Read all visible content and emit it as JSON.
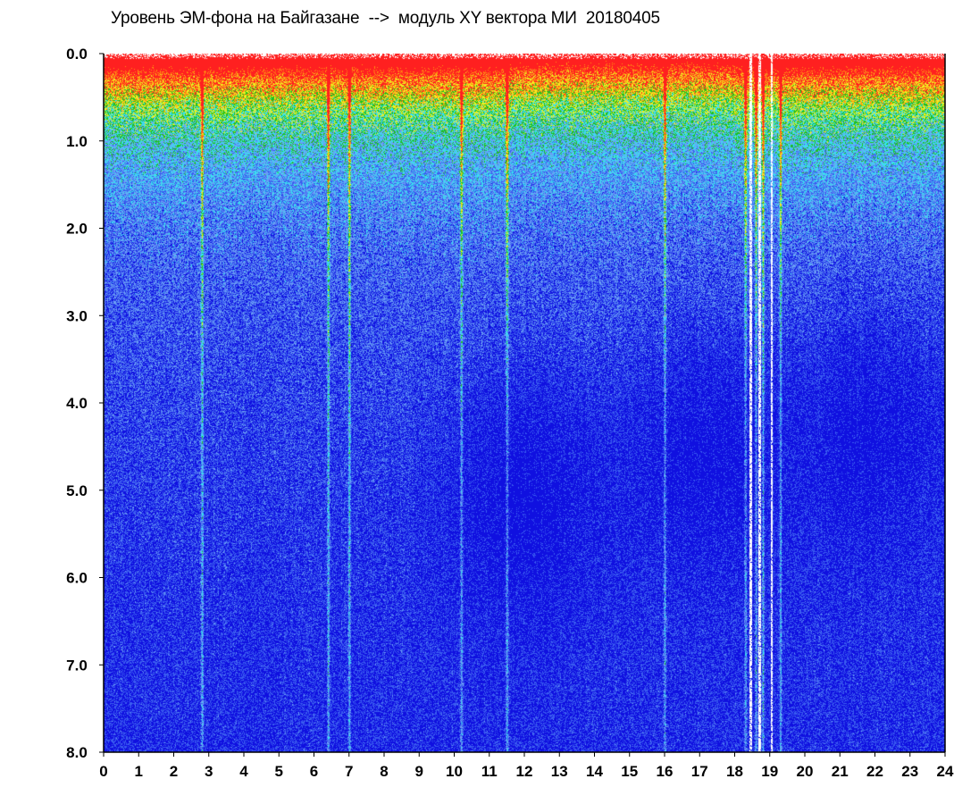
{
  "chart_data": {
    "type": "heatmap",
    "title": "Уровень ЭМ-фона на Байгазане  -->  модуль XY вектора МИ  20180405",
    "xlabel": "",
    "ylabel": "",
    "xlim": [
      0,
      24
    ],
    "ylim": [
      0,
      8
    ],
    "y_inverted": true,
    "x_ticks": [
      "0",
      "1",
      "2",
      "3",
      "4",
      "5",
      "6",
      "7",
      "8",
      "9",
      "10",
      "11",
      "12",
      "13",
      "14",
      "15",
      "16",
      "17",
      "18",
      "19",
      "20",
      "21",
      "22",
      "23",
      "24"
    ],
    "y_ticks": [
      "0.0",
      "1.0",
      "2.0",
      "3.0",
      "4.0",
      "5.0",
      "6.0",
      "7.0",
      "8.0"
    ],
    "colorscale": [
      "#1010e0",
      "#3a5cf0",
      "#6a9ef5",
      "#38e0f0",
      "#20c020",
      "#f0f020",
      "#ff9010",
      "#ff2020",
      "#ffffff"
    ],
    "density_profile": {
      "description_y": "y values (data units) where dominant color changes",
      "red_yellow_band_y": [
        0.0,
        0.3
      ],
      "green_band_y": [
        0.3,
        1.2
      ],
      "cyan_band_y": [
        1.2,
        2.2
      ],
      "blue_band_y": [
        2.2,
        8.0
      ]
    },
    "vertical_streaks_x": [
      2.8,
      6.4,
      7.0,
      10.2,
      11.5,
      16.0,
      18.3,
      18.6,
      18.8,
      19.3
    ],
    "dark_patches": [
      {
        "x": 17.2,
        "y": 4.5
      },
      {
        "x": 22.0,
        "y": 4.2
      },
      {
        "x": 12.0,
        "y": 5.0
      }
    ],
    "gaps_x": [
      18.45,
      18.7,
      19.05
    ]
  }
}
